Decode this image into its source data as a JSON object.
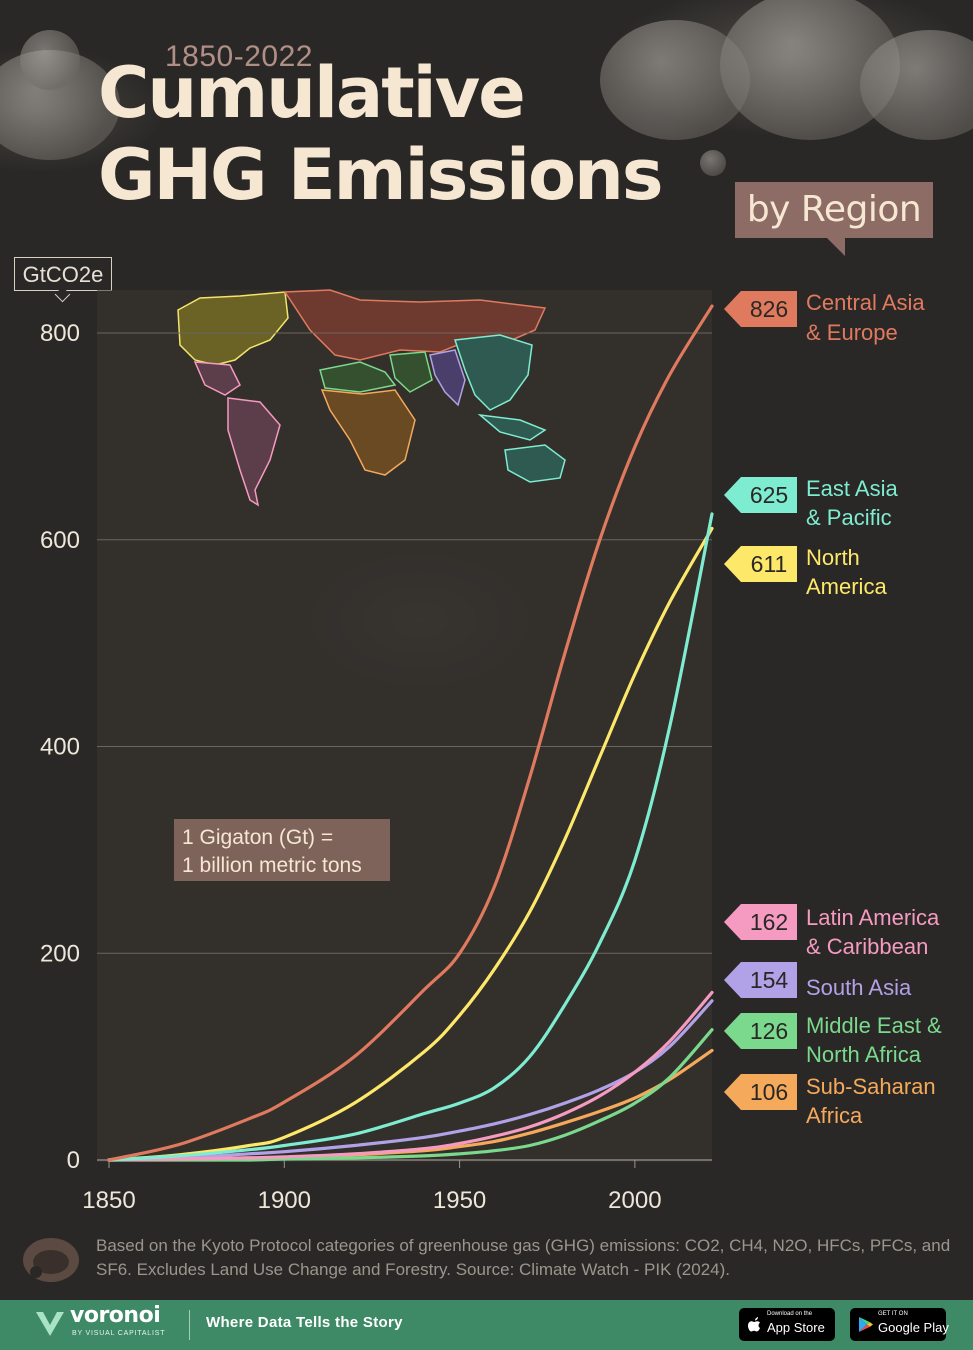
{
  "header": {
    "years": "1850-2022",
    "title_line1": "Cumulative",
    "title_line2": "GHG Emissions",
    "by_region": "by Region"
  },
  "chart_data": {
    "type": "line",
    "title": "Cumulative GHG Emissions by Region",
    "subtitle": "1850-2022",
    "ylabel": "GtCO2e",
    "xlabel": "",
    "xlim": [
      1850,
      2022
    ],
    "ylim": [
      0,
      800
    ],
    "xticks": [
      1850,
      1900,
      1950,
      2000
    ],
    "yticks": [
      0,
      200,
      400,
      600,
      800
    ],
    "grid": "horizontal",
    "annotation": "1 Gigaton (Gt) =\n1 billion metric tons",
    "x": [
      1850,
      1870,
      1890,
      1900,
      1920,
      1940,
      1950,
      1960,
      1970,
      1980,
      1990,
      2000,
      2010,
      2022
    ],
    "series": [
      {
        "name": "Central Asia & Europe",
        "label_lines": [
          "Central Asia",
          "& Europe"
        ],
        "final": "826",
        "color": "#e07a5f",
        "values": [
          0,
          15,
          40,
          56,
          100,
          165,
          200,
          265,
          370,
          490,
          600,
          690,
          760,
          826
        ]
      },
      {
        "name": "East Asia & Pacific",
        "label_lines": [
          "East Asia",
          "& Pacific"
        ],
        "final": "625",
        "color": "#7eecd0",
        "values": [
          0,
          4,
          10,
          14,
          25,
          45,
          55,
          70,
          100,
          150,
          210,
          290,
          420,
          625
        ]
      },
      {
        "name": "North America",
        "label_lines": [
          "North",
          "America"
        ],
        "final": "611",
        "color": "#fde86a",
        "values": [
          0,
          5,
          14,
          22,
          55,
          105,
          140,
          185,
          240,
          310,
          390,
          470,
          540,
          611
        ]
      },
      {
        "name": "Latin America & Caribbean",
        "label_lines": [
          "Latin America",
          "& Caribbean"
        ],
        "final": "162",
        "color": "#f59ac0",
        "values": [
          0,
          1,
          2,
          3,
          6,
          11,
          16,
          23,
          32,
          45,
          62,
          85,
          115,
          162
        ]
      },
      {
        "name": "South Asia",
        "label_lines": [
          "South Asia"
        ],
        "final": "154",
        "color": "#b1a2e8",
        "values": [
          0,
          2,
          6,
          8,
          14,
          22,
          28,
          35,
          44,
          55,
          68,
          85,
          110,
          154
        ]
      },
      {
        "name": "Middle East & North Africa",
        "label_lines": [
          "Middle East &",
          "North Africa"
        ],
        "final": "126",
        "color": "#7bd98d",
        "values": [
          0,
          0,
          0,
          1,
          2,
          4,
          6,
          9,
          14,
          24,
          38,
          55,
          80,
          126
        ]
      },
      {
        "name": "Sub-Saharan Africa",
        "label_lines": [
          "Sub-Saharan",
          "Africa"
        ],
        "final": "106",
        "color": "#f5a95b",
        "values": [
          0,
          1,
          2,
          2,
          5,
          9,
          13,
          18,
          26,
          36,
          47,
          60,
          78,
          106
        ]
      }
    ]
  },
  "footnote": "Based on the Kyoto Protocol categories of greenhouse gas (GHG) emissions: CO2, CH4, N2O, HFCs, PFCs, and SF6. Excludes Land Use Change and Forestry. Source: Climate Watch - PIK (2024).",
  "footer": {
    "brand": "voronoi",
    "brand_sub": "BY VISUAL CAPITALIST",
    "tagline": "Where Data Tells the Story",
    "app_store_small": "Download on the",
    "app_store_big": "App Store",
    "google_play_small": "GET IT ON",
    "google_play_big": "Google Play",
    "footer_color": "#3e8a66"
  }
}
